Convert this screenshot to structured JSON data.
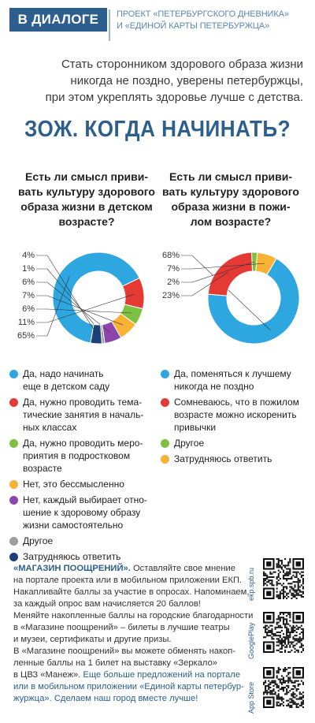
{
  "header": {
    "tag": "В ДИАЛОГЕ",
    "project_line1": "ПРОЕКТ «ПЕТЕРБУРГСКОГО ДНЕВНИКА»",
    "project_line2": "И «ЕДИНОЙ КАРТЫ ПЕТЕРБУРЖЦА»"
  },
  "intro": {
    "line1": "Стать сторонником здорового образа жизни",
    "line2": "никогда не поздно, уверены петербуржцы,",
    "line3": "при этом укреплять здоровье лучше с детства."
  },
  "title": "ЗОЖ. КОГДА НАЧИНАТЬ?",
  "colors": {
    "accent": "#2d5f8e",
    "blue": "#2ea6df",
    "red": "#e53935",
    "green": "#7cc142",
    "orange": "#f9b233",
    "purple": "#8e44ad",
    "gray": "#9e9e9e",
    "navy": "#1f3f78"
  },
  "chart_data": [
    {
      "type": "pie",
      "title": "Есть ли смысл прививать культуру здорового образа жизни в детском возрасте?",
      "title_lines": [
        "Есть ли смысл приви-",
        "вать культуру здорового",
        "образа жизни в детском",
        "возрасте?"
      ],
      "categories": [
        "Да, надо начинать еще в детском саду",
        "Да, нужно проводить тематические занятия в начальных классах",
        "Да, нужно проводить мероприятия в подростковом возрасте",
        "Нет, это бессмысленно",
        "Нет, каждый выбирает отношение к здоровому образу жизни самостоятельно",
        "Другое",
        "Затрудняюсь ответить"
      ],
      "values": [
        65,
        11,
        6,
        7,
        6,
        1,
        4
      ],
      "value_labels": [
        "65%",
        "11%",
        "6%",
        "7%",
        "6%",
        "1%",
        "4%"
      ],
      "legend_lines": [
        [
          "Да, надо начинать",
          "еще в детском саду"
        ],
        [
          "Да, нужно проводить тема-",
          "тические занятия в началь-",
          "ных классах"
        ],
        [
          "Да, нужно проводить меро-",
          "приятия в подростковом",
          "возрасте"
        ],
        [
          "Нет, это бессмысленно"
        ],
        [
          "Нет, каждый выбирает отно-",
          "шение к здоровому образу",
          "жизни самостоятельно"
        ],
        [
          "Другое"
        ],
        [
          "Затрудняюсь ответить"
        ]
      ]
    },
    {
      "type": "pie",
      "title": "Есть ли смысл прививать культуру здорового образа жизни в пожилом возрасте?",
      "title_lines": [
        "Есть ли смысл приви-",
        "вать культуру здорового",
        "образа жизни в пожи-",
        "лом возрасте?"
      ],
      "categories": [
        "Да, поменяться к лучшему никогда не поздно",
        "Сомневаюсь, что в пожилом возрасте можно искоренить привычки",
        "Другое",
        "Затрудняюсь ответить"
      ],
      "values": [
        68,
        23,
        2,
        7
      ],
      "value_labels": [
        "68%",
        "23%",
        "2%",
        "7%"
      ],
      "legend_lines": [
        [
          "Да, поменяться к лучшему",
          "никогда не поздно"
        ],
        [
          "Сомневаюсь, что в пожилом",
          "возрасте можно искоренить",
          "привычки"
        ],
        [
          "Другое"
        ],
        [
          "Затрудняюсь ответить"
        ]
      ]
    }
  ],
  "store": {
    "l1a": "«МАГАЗИН ПООЩРЕНИЙ».",
    "l1b": " Оставляйте свое мнение",
    "l2": "на портале проекта или в мобильном приложении ЕКП.",
    "l3": "Накапливайте баллы за участие в опросах. Напоминаем,",
    "l4": "за каждый опрос вам начисляется 20 баллов!",
    "l5": "Меняйте накопленные баллы на городские благодарности",
    "l6": "в «Магазине поощрений» – билеты в лучшие театры",
    "l7": "и музеи, сертификаты и другие призы.",
    "l8": "В «Магазине поощрений» вы можете обменять накоп-",
    "l9": "ленные баллы на 1 билет на выставку «Зеркало»",
    "l10a": "в ЦВЗ «Манеж». ",
    "l10b": "Еще больше предложений на портале",
    "l11": "или в мобильном приложении «Единой карты петербур-",
    "l12": "журжца». Сделаем наш город вместе лучше!"
  },
  "qr": {
    "label1": "ekp.spb.ru",
    "label2": "GooglePlay",
    "label3": "App Store"
  }
}
